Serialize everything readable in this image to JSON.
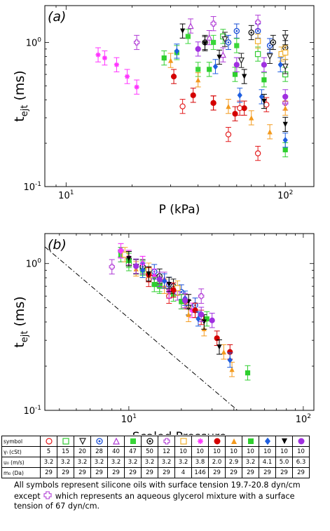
{
  "colors": {
    "open_circle": "#e31a1c",
    "open_square": "#33cc33",
    "open_tri_down": "#222222",
    "circle_dot_blue": "#1a4fd6",
    "open_tri_up": "#b03ad6",
    "filled_square_small": "#39d639",
    "circle_dot_black": "#111111",
    "open_cross": "#b03ad6",
    "open_square_orange": "#f0b030",
    "asterisk": "#ff33ff",
    "filled_circle": "#d40000",
    "filled_tri_up": "#f39a1e",
    "filled_square": "#2ecf2e",
    "filled_diamond": "#1f5fe0",
    "filled_tri_down": "#000000",
    "filled_circle_purple": "#a030e0",
    "dashdot_line": "#000000"
  },
  "chart_data": [
    {
      "type": "scatter",
      "panel_label": "(a)",
      "xlabel": "P (kPa)",
      "ylabel": "t",
      "ylabel_sub": "ejt",
      "ylabel_unit": " (ms)",
      "xscale": "log",
      "yscale": "log",
      "xlim": [
        8,
        135
      ],
      "ylim": [
        0.1,
        1.8
      ],
      "xticks": [
        {
          "v": 10,
          "b": "10",
          "e": "1"
        },
        {
          "v": 100,
          "b": "10",
          "e": "2"
        }
      ],
      "yticks": [
        {
          "v": 0.1,
          "b": "10",
          "e": "-1"
        },
        {
          "v": 1,
          "b": "10",
          "e": "0"
        }
      ],
      "series": [
        {
          "symbol": "open_circle",
          "points": [
            [
              55,
              0.23
            ],
            [
              62,
              0.35
            ],
            [
              75,
              0.17
            ],
            [
              82,
              0.37
            ],
            [
              34,
              0.36
            ],
            [
              47,
              0.38
            ]
          ]
        },
        {
          "symbol": "open_square",
          "points": [
            [
              100,
              0.6
            ],
            [
              75,
              0.83
            ],
            [
              52,
              1.1
            ]
          ]
        },
        {
          "symbol": "open_tri_down",
          "points": [
            [
              100,
              1.08
            ],
            [
              85,
              0.8
            ],
            [
              100,
              0.68
            ],
            [
              63,
              0.75
            ],
            [
              53,
              1.05
            ]
          ]
        },
        {
          "symbol": "circle_dot_blue",
          "points": [
            [
              75,
              1.2
            ],
            [
              85,
              0.95
            ],
            [
              60,
              1.2
            ],
            [
              55,
              1.0
            ]
          ]
        },
        {
          "symbol": "open_tri_up",
          "points": [
            [
              37,
              1.3
            ],
            [
              45,
              1.08
            ],
            [
              52,
              0.82
            ]
          ]
        },
        {
          "symbol": "filled_square_small",
          "points": [
            [
              36,
              1.1
            ],
            [
              47,
              1.0
            ],
            [
              40,
              0.65
            ],
            [
              32,
              0.85
            ],
            [
              60,
              0.95
            ]
          ]
        },
        {
          "symbol": "circle_dot_black",
          "points": [
            [
              70,
              1.17
            ],
            [
              100,
              0.92
            ],
            [
              43,
              1.0
            ],
            [
              88,
              1.0
            ]
          ]
        },
        {
          "symbol": "open_cross",
          "points": [
            [
              21,
              1.0
            ],
            [
              47,
              1.35
            ],
            [
              75,
              1.38
            ],
            [
              100,
              0.38
            ]
          ]
        },
        {
          "symbol": "open_square_orange",
          "points": [
            [
              75,
              1.02
            ],
            [
              96,
              0.83
            ],
            [
              100,
              0.85
            ]
          ]
        },
        {
          "symbol": "asterisk",
          "points": [
            [
              14,
              0.82
            ],
            [
              15,
              0.78
            ],
            [
              17,
              0.7
            ],
            [
              19,
              0.58
            ],
            [
              21,
              0.49
            ]
          ]
        },
        {
          "symbol": "filled_circle",
          "points": [
            [
              31,
              0.58
            ],
            [
              38,
              0.43
            ],
            [
              47,
              0.38
            ],
            [
              59,
              0.32
            ],
            [
              65,
              0.35
            ]
          ]
        },
        {
          "symbol": "filled_tri_up",
          "points": [
            [
              30,
              0.75
            ],
            [
              40,
              0.55
            ],
            [
              55,
              0.36
            ],
            [
              70,
              0.3
            ],
            [
              85,
              0.24
            ],
            [
              100,
              0.35
            ]
          ]
        },
        {
          "symbol": "filled_square",
          "points": [
            [
              28,
              0.78
            ],
            [
              45,
              0.65
            ],
            [
              59,
              0.6
            ],
            [
              80,
              0.55
            ],
            [
              100,
              0.18
            ]
          ]
        },
        {
          "symbol": "filled_diamond",
          "points": [
            [
              32,
              0.87
            ],
            [
              48,
              0.68
            ],
            [
              62,
              0.43
            ],
            [
              78,
              0.42
            ],
            [
              95,
              0.7
            ],
            [
              100,
              0.21
            ]
          ]
        },
        {
          "symbol": "filled_tri_down",
          "points": [
            [
              34,
              1.2
            ],
            [
              43,
              0.98
            ],
            [
              50,
              0.79
            ],
            [
              65,
              0.58
            ],
            [
              80,
              0.39
            ],
            [
              100,
              0.27
            ]
          ]
        },
        {
          "symbol": "filled_circle_purple",
          "points": [
            [
              40,
              0.9
            ],
            [
              60,
              0.7
            ],
            [
              80,
              0.7
            ],
            [
              100,
              0.42
            ]
          ]
        }
      ]
    },
    {
      "type": "scatter",
      "panel_label": "(b)",
      "xlabel": "Scaled Pressure",
      "ylabel": "t",
      "ylabel_sub": "ejt",
      "ylabel_unit": " (ms)",
      "xscale": "log",
      "yscale": "log",
      "xlim": [
        3.3,
        115
      ],
      "ylim": [
        0.1,
        1.6
      ],
      "xticks": [
        {
          "v": 10,
          "b": "10",
          "e": "1"
        },
        {
          "v": 100,
          "b": "10",
          "e": "2"
        }
      ],
      "yticks": [
        {
          "v": 0.1,
          "b": "10",
          "e": "-1"
        },
        {
          "v": 1,
          "b": "10",
          "e": "0"
        }
      ],
      "reference_line": {
        "style": "dash-dot",
        "points": [
          [
            3.3,
            1.3
          ],
          [
            42,
            0.1
          ]
        ]
      },
      "series": [
        {
          "symbol": "open_circle",
          "points": [
            [
              17,
              0.6
            ],
            [
              21,
              0.55
            ],
            [
              26,
              0.43
            ],
            [
              13,
              0.78
            ]
          ]
        },
        {
          "symbol": "open_square",
          "points": [
            [
              10,
              1.0
            ],
            [
              12,
              0.93
            ],
            [
              15,
              0.72
            ]
          ]
        },
        {
          "symbol": "open_tri_down",
          "points": [
            [
              11,
              0.95
            ],
            [
              14,
              0.8
            ],
            [
              17,
              0.65
            ],
            [
              22,
              0.5
            ]
          ]
        },
        {
          "symbol": "circle_dot_blue",
          "points": [
            [
              14,
              0.88
            ],
            [
              17,
              0.72
            ],
            [
              20,
              0.64
            ],
            [
              24,
              0.52
            ]
          ]
        },
        {
          "symbol": "open_tri_up",
          "points": [
            [
              9,
              1.15
            ],
            [
              12,
              1.0
            ],
            [
              16,
              0.78
            ]
          ]
        },
        {
          "symbol": "filled_square_small",
          "points": [
            [
              9,
              1.15
            ],
            [
              12,
              0.9
            ],
            [
              15,
              0.7
            ],
            [
              18,
              0.62
            ]
          ]
        },
        {
          "symbol": "circle_dot_black",
          "points": [
            [
              10,
              1.08
            ],
            [
              12,
              0.95
            ],
            [
              15,
              0.82
            ],
            [
              18,
              0.7
            ]
          ]
        },
        {
          "symbol": "open_cross",
          "points": [
            [
              8,
              0.95
            ],
            [
              9,
              1.22
            ],
            [
              19,
              0.63
            ],
            [
              26,
              0.6
            ]
          ]
        },
        {
          "symbol": "open_square_orange",
          "points": [
            [
              9.5,
              1.15
            ],
            [
              13,
              0.9
            ],
            [
              19,
              0.68
            ]
          ]
        },
        {
          "symbol": "asterisk",
          "points": [
            [
              9,
              1.22
            ],
            [
              10,
              1.1
            ],
            [
              12,
              1.0
            ],
            [
              14,
              0.82
            ],
            [
              17,
              0.65
            ],
            [
              20,
              0.55
            ],
            [
              23,
              0.48
            ]
          ]
        },
        {
          "symbol": "filled_circle",
          "points": [
            [
              13,
              0.84
            ],
            [
              18,
              0.66
            ],
            [
              24,
              0.48
            ],
            [
              32,
              0.31
            ],
            [
              38,
              0.25
            ]
          ]
        },
        {
          "symbol": "filled_tri_up",
          "points": [
            [
              11,
              0.92
            ],
            [
              16,
              0.7
            ],
            [
              22,
              0.45
            ],
            [
              27,
              0.36
            ],
            [
              35,
              0.25
            ],
            [
              39,
              0.19
            ]
          ]
        },
        {
          "symbol": "filled_square",
          "points": [
            [
              10,
              1.05
            ],
            [
              14,
              0.72
            ],
            [
              20,
              0.55
            ],
            [
              28,
              0.42
            ],
            [
              48,
              0.18
            ]
          ]
        },
        {
          "symbol": "filled_diamond",
          "points": [
            [
              12,
              0.9
            ],
            [
              16,
              0.76
            ],
            [
              21,
              0.58
            ],
            [
              25,
              0.42
            ],
            [
              38,
              0.22
            ]
          ]
        },
        {
          "symbol": "filled_tri_down",
          "points": [
            [
              10,
              1.08
            ],
            [
              13,
              0.85
            ],
            [
              17,
              0.72
            ],
            [
              22,
              0.55
            ],
            [
              27,
              0.4
            ],
            [
              33,
              0.27
            ]
          ]
        },
        {
          "symbol": "filled_circle_purple",
          "points": [
            [
              11,
              0.96
            ],
            [
              15,
              0.78
            ],
            [
              21,
              0.56
            ],
            [
              26,
              0.45
            ],
            [
              30,
              0.41
            ]
          ]
        }
      ]
    }
  ],
  "legend_table": {
    "headers": [
      "symbol",
      "γₗ (cSt)",
      "u₀ (m/s)",
      "m₀ (Da)"
    ],
    "symbols": [
      "open_circle",
      "open_square",
      "open_tri_down",
      "circle_dot_blue",
      "open_tri_up",
      "filled_square_small",
      "circle_dot_black",
      "open_cross",
      "open_square_orange",
      "asterisk",
      "filled_circle",
      "filled_tri_up",
      "filled_square",
      "filled_diamond",
      "filled_tri_down",
      "filled_circle_purple"
    ],
    "viscosity": [
      "5",
      "15",
      "20",
      "28",
      "40",
      "47",
      "50",
      "12",
      "10",
      "10",
      "10",
      "10",
      "10",
      "10",
      "10",
      "10"
    ],
    "velocity": [
      "3.2",
      "3.2",
      "3.2",
      "3.2",
      "3.2",
      "3.2",
      "3.2",
      "3.2",
      "3.2",
      "3.8",
      "2.0",
      "2.9",
      "3.2",
      "4.1",
      "5.0",
      "6.3"
    ],
    "mass": [
      "29",
      "29",
      "29",
      "29",
      "29",
      "29",
      "29",
      "29",
      "4",
      "146",
      "29",
      "29",
      "29",
      "29",
      "29",
      "29"
    ]
  },
  "caption": {
    "part1": "All symbols represent silicone oils with surface tension 19.7-20.8 dyn/cm except",
    "part2": "which represents an aqueous glycerol mixture with a surface tension of 67 dyn/cm.",
    "symbol": "open_cross"
  }
}
